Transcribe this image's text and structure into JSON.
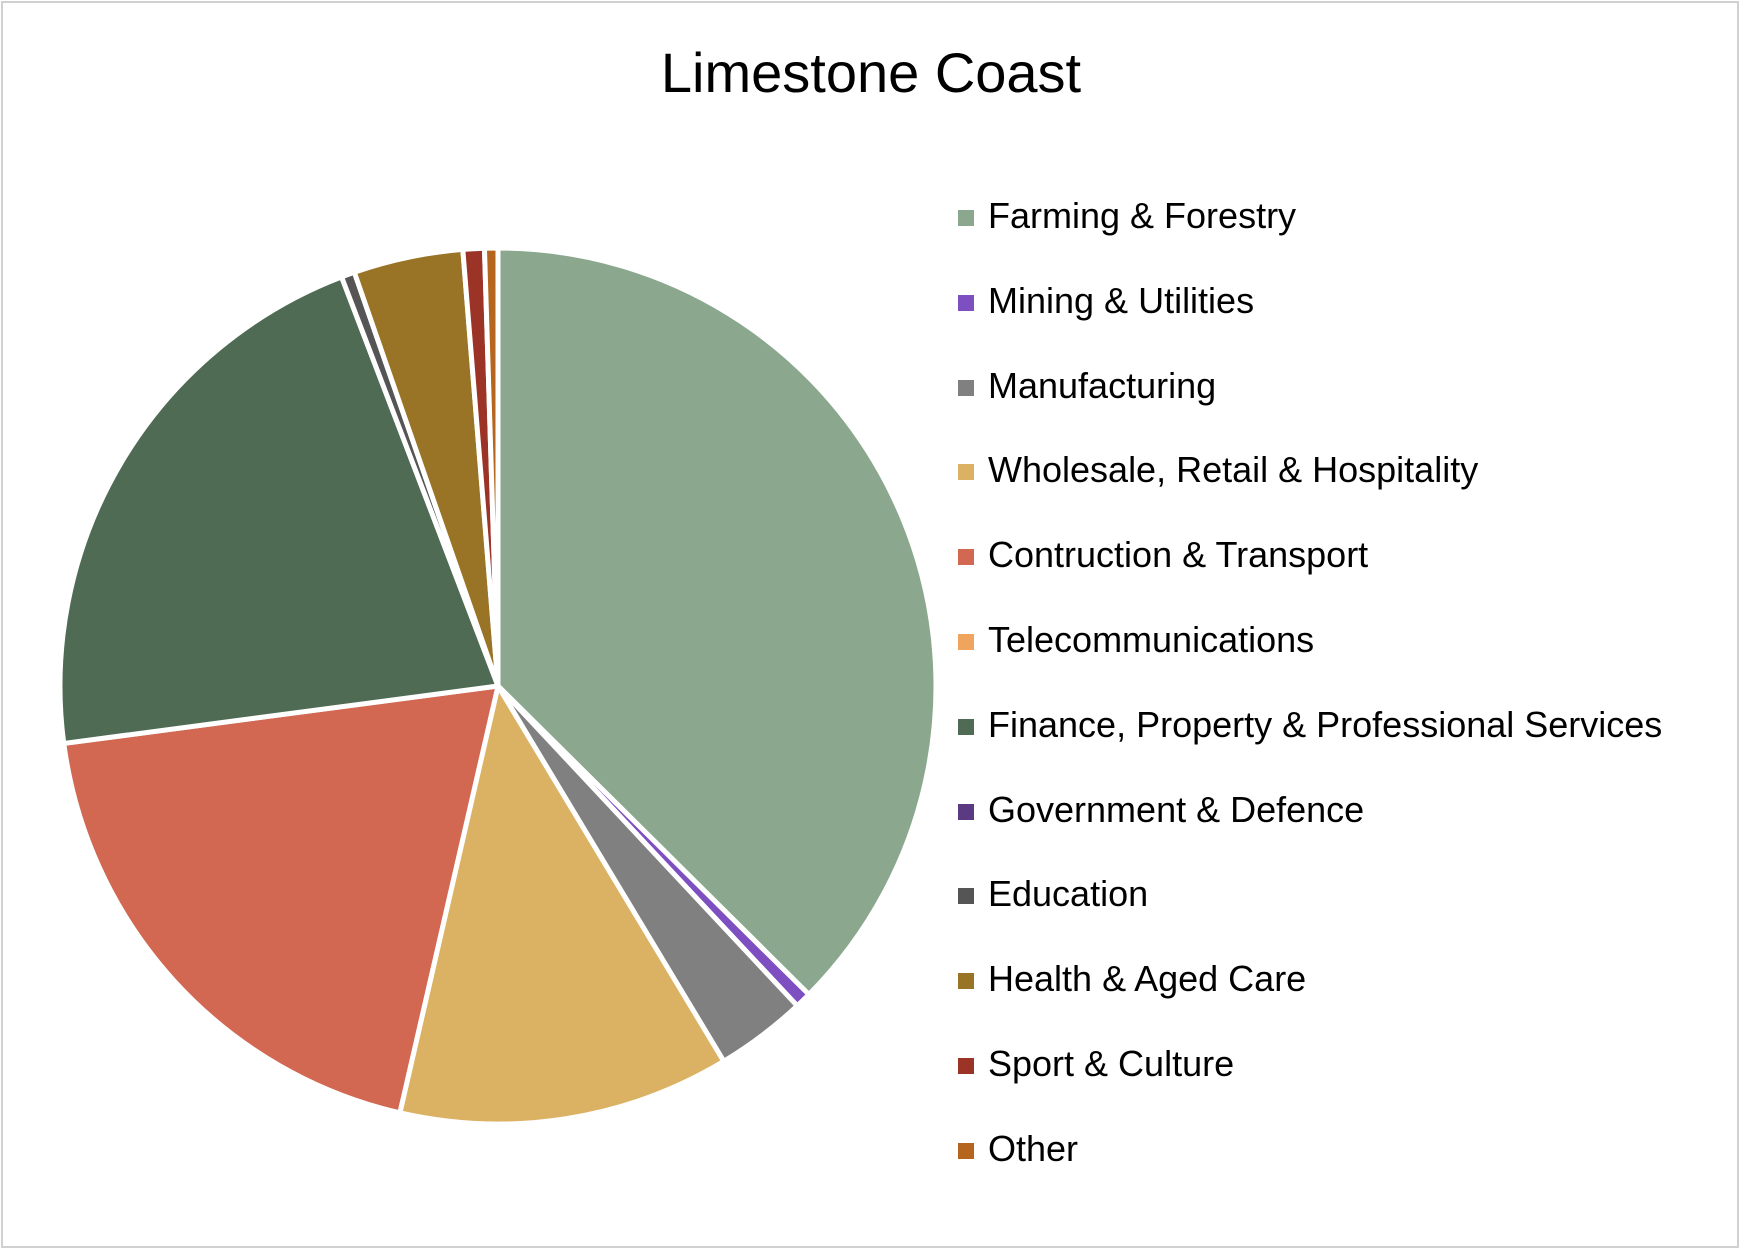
{
  "chart_data": {
    "type": "pie",
    "title": "Limestone Coast",
    "legend_position": "right",
    "slices": [
      {
        "label": "Farming & Forestry",
        "value": 38.0,
        "color": "#8BA88E"
      },
      {
        "label": "Mining & Utilities",
        "value": 0.6,
        "color": "#7D4FC0"
      },
      {
        "label": "Manufacturing",
        "value": 3.4,
        "color": "#808080"
      },
      {
        "label": "Wholesale, Retail & Hospitality",
        "value": 12.4,
        "color": "#DBB263"
      },
      {
        "label": "Contruction & Transport",
        "value": 19.6,
        "color": "#D26752"
      },
      {
        "label": "Telecommunications",
        "value": 0.0,
        "color": "#F0A55E"
      },
      {
        "label": "Finance, Property & Professional Services",
        "value": 21.6,
        "color": "#4F6B54"
      },
      {
        "label": "Government & Defence",
        "value": 0.0,
        "color": "#5A3A82"
      },
      {
        "label": "Education",
        "value": 0.5,
        "color": "#555555"
      },
      {
        "label": "Health & Aged Care",
        "value": 4.1,
        "color": "#997326"
      },
      {
        "label": "Sport & Culture",
        "value": 0.8,
        "color": "#9B3426"
      },
      {
        "label": "Other",
        "value": 0.5,
        "color": "#B5651D"
      }
    ]
  }
}
